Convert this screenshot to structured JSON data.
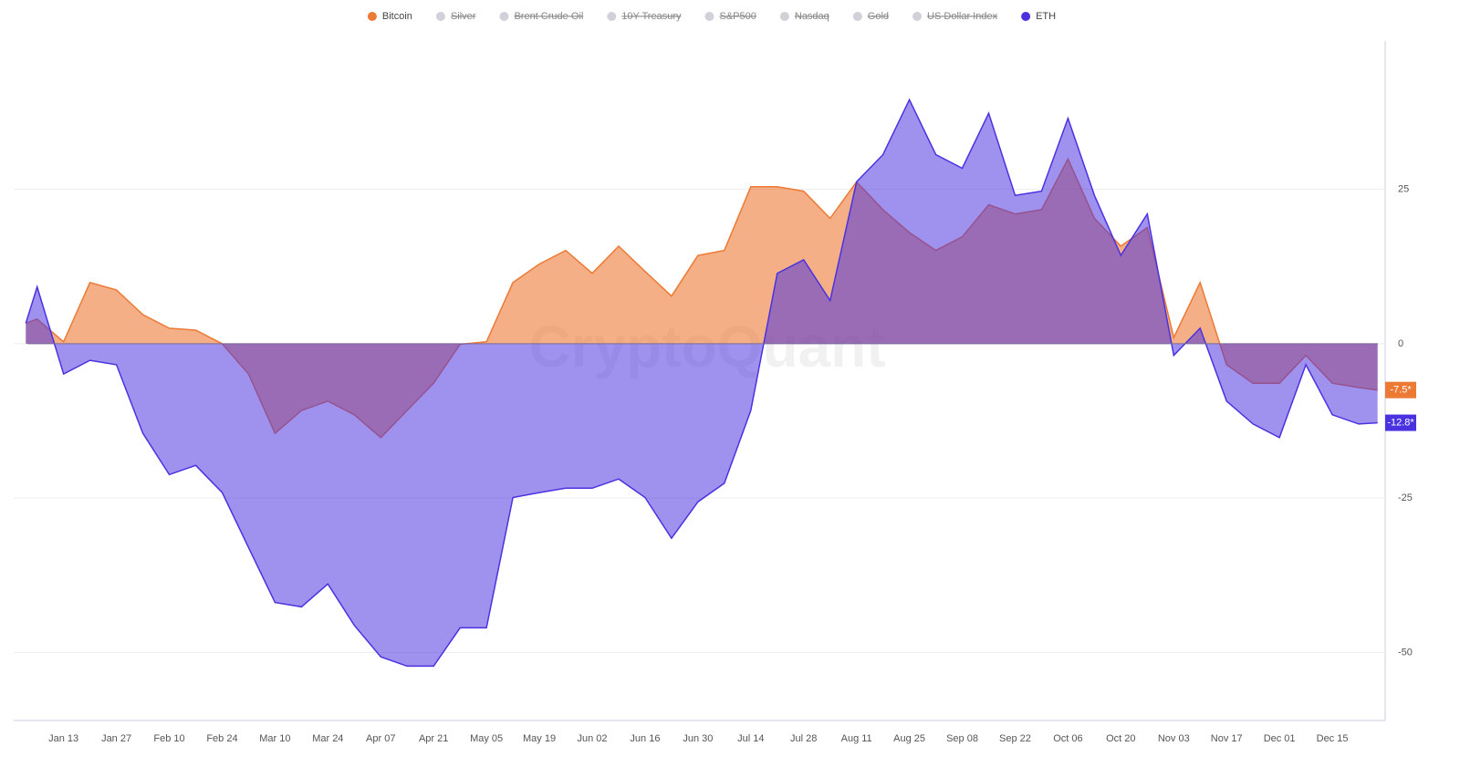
{
  "chart_data": {
    "type": "area",
    "watermark": "CryptoQuant",
    "x": [
      "Jan 03",
      "Jan 06",
      "Jan 13",
      "Jan 20",
      "Jan 27",
      "Feb 03",
      "Feb 10",
      "Feb 17",
      "Feb 24",
      "Mar 03",
      "Mar 10",
      "Mar 17",
      "Mar 24",
      "Mar 31",
      "Apr 07",
      "Apr 14",
      "Apr 21",
      "Apr 28",
      "May 05",
      "May 12",
      "May 19",
      "May 26",
      "Jun 02",
      "Jun 09",
      "Jun 16",
      "Jun 23",
      "Jun 30",
      "Jul 07",
      "Jul 14",
      "Jul 21",
      "Jul 28",
      "Aug 04",
      "Aug 11",
      "Aug 18",
      "Aug 25",
      "Sep 01",
      "Sep 08",
      "Sep 15",
      "Sep 22",
      "Sep 29",
      "Oct 06",
      "Oct 13",
      "Oct 20",
      "Oct 27",
      "Nov 03",
      "Nov 10",
      "Nov 17",
      "Nov 24",
      "Dec 01",
      "Dec 08",
      "Dec 15",
      "Dec 22",
      "Dec 27"
    ],
    "xlim": [
      "Jan 01",
      "Dec 29"
    ],
    "xticks": [
      "Jan 13",
      "Jan 27",
      "Feb 10",
      "Feb 24",
      "Mar 10",
      "Mar 24",
      "Apr 07",
      "Apr 21",
      "May 05",
      "May 19",
      "Jun 02",
      "Jun 16",
      "Jun 30",
      "Jul 14",
      "Jul 28",
      "Aug 11",
      "Aug 25",
      "Sep 08",
      "Sep 22",
      "Oct 06",
      "Oct 20",
      "Nov 03",
      "Nov 17",
      "Dec 01",
      "Dec 15"
    ],
    "ylim": [
      -61,
      49
    ],
    "yticks": [
      -50,
      -25,
      0,
      25
    ],
    "grid": true,
    "series": [
      {
        "name": "Bitcoin",
        "color": "#ec7a35",
        "fill_opacity": 0.6,
        "last_label": "-7.5*",
        "values": [
          3.3,
          4,
          0.3,
          9.9,
          8.7,
          4.7,
          2.5,
          2.2,
          0,
          -4.9,
          -14.5,
          -10.8,
          -9.3,
          -11.5,
          -15.2,
          -10.8,
          -6.4,
          -0.1,
          0.3,
          9.9,
          12.9,
          15.1,
          11.4,
          15.8,
          11.7,
          7.7,
          14.3,
          15.1,
          25.4,
          25.4,
          24.7,
          20.3,
          26.2,
          21.7,
          18,
          15.1,
          17.3,
          22.5,
          21,
          21.7,
          29.9,
          20.3,
          15.8,
          18.8,
          1,
          9.9,
          -3.4,
          -6.4,
          -6.4,
          -1.9,
          -6.4,
          -7.1,
          -7.5
        ]
      },
      {
        "name": "Silver",
        "color": "#d0d1d9",
        "hidden": true
      },
      {
        "name": "Brent Crude Oil",
        "color": "#d0d1d9",
        "hidden": true
      },
      {
        "name": "10Y Treasury",
        "color": "#d0d1d9",
        "hidden": true
      },
      {
        "name": "S&P500",
        "color": "#d0d1d9",
        "hidden": true
      },
      {
        "name": "Nasdaq",
        "color": "#d0d1d9",
        "hidden": true
      },
      {
        "name": "Gold",
        "color": "#d0d1d9",
        "hidden": true
      },
      {
        "name": "US Dollar Index",
        "color": "#d0d1d9",
        "hidden": true
      },
      {
        "name": "ETH",
        "color": "#4a32e0",
        "fill_opacity": 0.53,
        "last_label": "-12.8*",
        "values": [
          3.3,
          9.2,
          -4.9,
          -2.7,
          -3.4,
          -14.5,
          -21.2,
          -19.7,
          -24.1,
          -33,
          -41.9,
          -42.6,
          -38.9,
          -45.6,
          -50.7,
          -52.2,
          -52.2,
          -46,
          -46,
          -24.9,
          -24.1,
          -23.4,
          -23.4,
          -21.9,
          -24.9,
          -31.5,
          -25.6,
          -22.6,
          -10.8,
          11.4,
          13.6,
          7,
          26.2,
          30.6,
          39.5,
          30.6,
          28.4,
          37.3,
          24,
          24.7,
          36.5,
          24,
          14.3,
          21,
          -1.9,
          2.5,
          -9.3,
          -13,
          -15.2,
          -3.4,
          -11.5,
          -13,
          -12.8
        ]
      }
    ]
  }
}
